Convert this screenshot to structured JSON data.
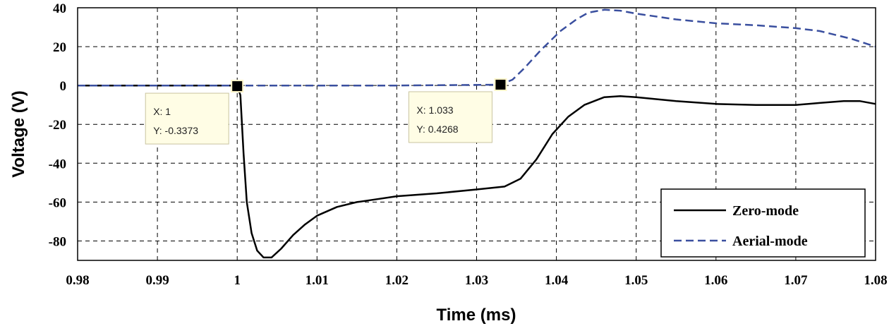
{
  "chart_data": {
    "type": "line",
    "xlabel": "Time (ms)",
    "ylabel": "Voltage (V)",
    "xlim": [
      0.98,
      1.08
    ],
    "ylim": [
      -90,
      40
    ],
    "x_ticks": [
      "0.98",
      "0.99",
      "1",
      "1.01",
      "1.02",
      "1.03",
      "1.04",
      "1.05",
      "1.06",
      "1.07",
      "1.08"
    ],
    "y_ticks": [
      "40",
      "20",
      "0",
      "-20",
      "-40",
      "-60",
      "-80"
    ],
    "grid": true,
    "legend_position": "bottom-right",
    "series": [
      {
        "name": "Zero-mode",
        "color": "#000000",
        "style": "solid",
        "points": [
          [
            0.98,
            0
          ],
          [
            0.99,
            0
          ],
          [
            0.9998,
            0
          ],
          [
            1.0,
            -0.3
          ],
          [
            1.0004,
            -5
          ],
          [
            1.0008,
            -35
          ],
          [
            1.0012,
            -60
          ],
          [
            1.0018,
            -76
          ],
          [
            1.0025,
            -85
          ],
          [
            1.0033,
            -88.5
          ],
          [
            1.0043,
            -88.5
          ],
          [
            1.0055,
            -84
          ],
          [
            1.007,
            -77
          ],
          [
            1.0085,
            -71.5
          ],
          [
            1.01,
            -67
          ],
          [
            1.0125,
            -62.5
          ],
          [
            1.015,
            -60
          ],
          [
            1.0175,
            -58.5
          ],
          [
            1.02,
            -57
          ],
          [
            1.025,
            -55.5
          ],
          [
            1.03,
            -53.5
          ],
          [
            1.0335,
            -52
          ],
          [
            1.0355,
            -48
          ],
          [
            1.0375,
            -38
          ],
          [
            1.0395,
            -25
          ],
          [
            1.0415,
            -16
          ],
          [
            1.0435,
            -10
          ],
          [
            1.046,
            -6
          ],
          [
            1.048,
            -5.5
          ],
          [
            1.05,
            -6
          ],
          [
            1.055,
            -8
          ],
          [
            1.06,
            -9.5
          ],
          [
            1.065,
            -10
          ],
          [
            1.07,
            -10
          ],
          [
            1.073,
            -9
          ],
          [
            1.076,
            -8
          ],
          [
            1.078,
            -8
          ],
          [
            1.08,
            -9.5
          ]
        ]
      },
      {
        "name": "Aerial-mode",
        "color": "#3a4f9f",
        "style": "dashed",
        "points": [
          [
            0.98,
            0
          ],
          [
            0.99,
            0
          ],
          [
            1.0,
            0
          ],
          [
            1.02,
            0
          ],
          [
            1.033,
            0.4268
          ],
          [
            1.0345,
            3
          ],
          [
            1.036,
            9
          ],
          [
            1.038,
            18
          ],
          [
            1.0405,
            28
          ],
          [
            1.0425,
            34
          ],
          [
            1.044,
            37.5
          ],
          [
            1.046,
            39
          ],
          [
            1.048,
            38.5
          ],
          [
            1.05,
            37
          ],
          [
            1.055,
            34
          ],
          [
            1.06,
            32
          ],
          [
            1.065,
            31
          ],
          [
            1.07,
            29.5
          ],
          [
            1.073,
            28
          ],
          [
            1.077,
            24
          ],
          [
            1.08,
            20
          ]
        ]
      }
    ],
    "annotations": [
      {
        "x": 1.0,
        "y": -0.3373,
        "line1": "X: 1",
        "line2": "Y: -0.3373"
      },
      {
        "x": 1.033,
        "y": 0.4268,
        "line1": "X: 1.033",
        "line2": "Y: 0.4268"
      }
    ]
  }
}
